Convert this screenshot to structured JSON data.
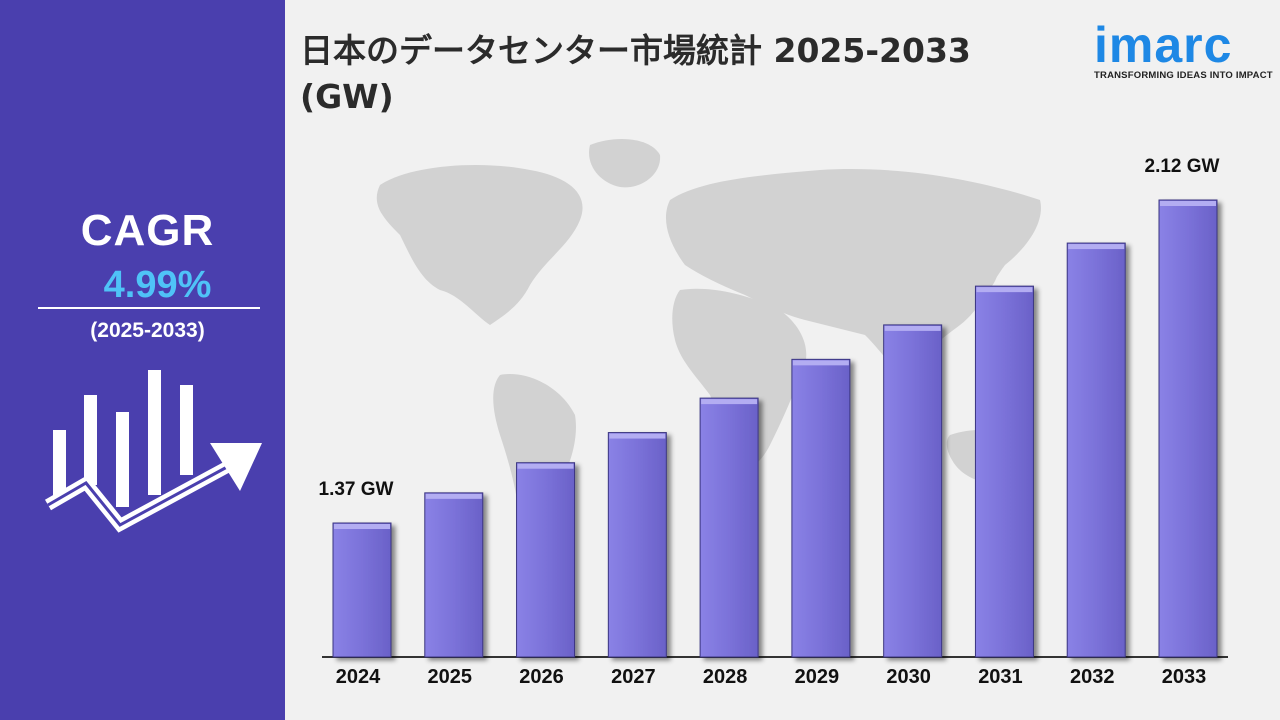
{
  "title": "日本のデータセンター市場統計 2025-2033 (GW)",
  "brand": {
    "name": "imarc",
    "tagline": "TRANSFORMING IDEAS INTO IMPACT",
    "color": "#1e88e5"
  },
  "sidebar": {
    "cagr_label": "CAGR",
    "cagr_value": "4.99%",
    "period": "(2025-2033)",
    "background": "#4a3fae",
    "value_color": "#4fc3f7"
  },
  "chart_data": {
    "type": "bar",
    "title": "日本のデータセンター市場統計 2025-2033 (GW)",
    "categories": [
      "2024",
      "2025",
      "2026",
      "2027",
      "2028",
      "2029",
      "2030",
      "2031",
      "2032",
      "2033"
    ],
    "values": [
      1.37,
      1.44,
      1.51,
      1.58,
      1.66,
      1.75,
      1.83,
      1.92,
      2.02,
      2.12
    ],
    "data_labels": [
      {
        "category": "2024",
        "text": "1.37 GW"
      },
      {
        "category": "2033",
        "text": "2.12 GW"
      }
    ],
    "unit": "GW",
    "bar_color": "#7b72d9",
    "grid": false,
    "legend": "none"
  }
}
